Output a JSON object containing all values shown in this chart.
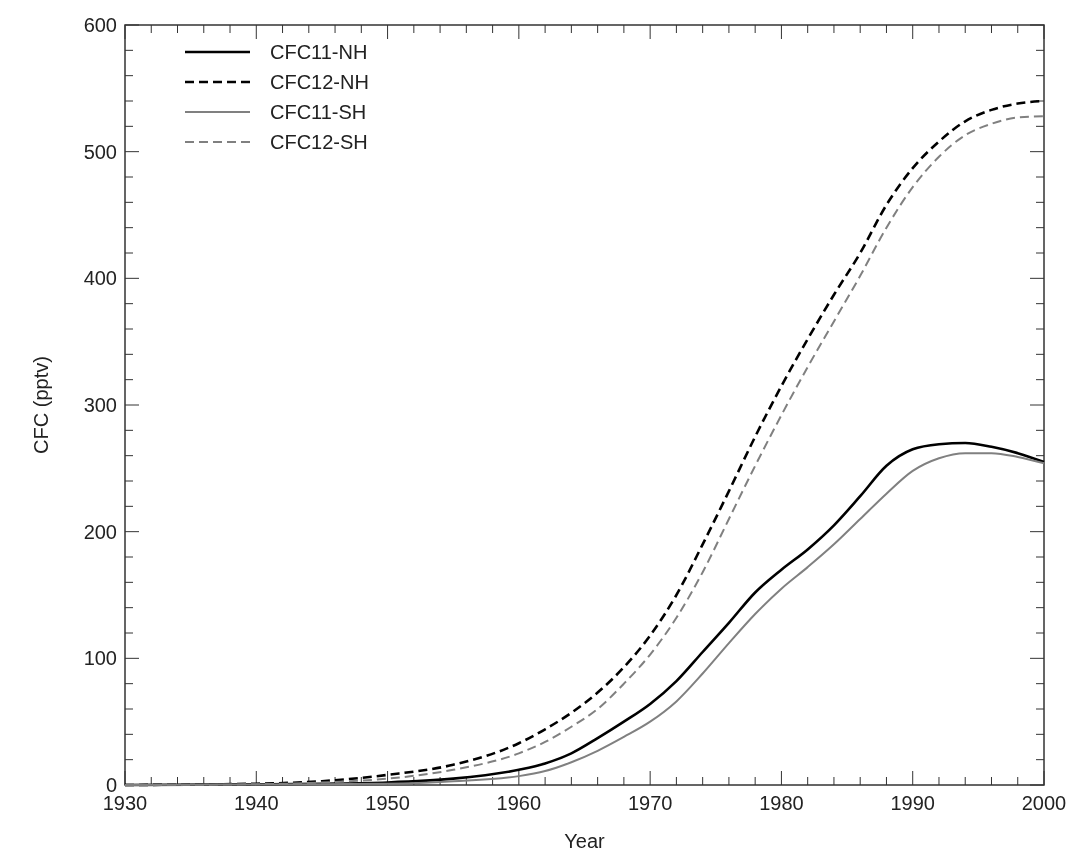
{
  "chart_data": {
    "type": "line",
    "xlabel": "Year",
    "ylabel": "CFC (pptv)",
    "xlim": [
      1930,
      2000
    ],
    "ylim": [
      0,
      600
    ],
    "xticks": [
      1930,
      {
        "value": 1932,
        "label": null
      },
      {
        "value": 1934,
        "label": null
      },
      {
        "value": 1936,
        "label": null
      },
      {
        "value": 1938,
        "label": null
      },
      1940,
      {
        "value": 1942,
        "label": null
      },
      {
        "value": 1944,
        "label": null
      },
      {
        "value": 1946,
        "label": null
      },
      {
        "value": 1948,
        "label": null
      },
      1950,
      {
        "value": 1952,
        "label": null
      },
      {
        "value": 1954,
        "label": null
      },
      {
        "value": 1956,
        "label": null
      },
      {
        "value": 1958,
        "label": null
      },
      1960,
      {
        "value": 1962,
        "label": null
      },
      {
        "value": 1964,
        "label": null
      },
      {
        "value": 1966,
        "label": null
      },
      {
        "value": 1968,
        "label": null
      },
      1970,
      {
        "value": 1972,
        "label": null
      },
      {
        "value": 1974,
        "label": null
      },
      {
        "value": 1976,
        "label": null
      },
      {
        "value": 1978,
        "label": null
      },
      1980,
      {
        "value": 1982,
        "label": null
      },
      {
        "value": 1984,
        "label": null
      },
      {
        "value": 1986,
        "label": null
      },
      {
        "value": 1988,
        "label": null
      },
      1990,
      {
        "value": 1992,
        "label": null
      },
      {
        "value": 1994,
        "label": null
      },
      {
        "value": 1996,
        "label": null
      },
      {
        "value": 1998,
        "label": null
      },
      2000
    ],
    "yticks": [
      0,
      {
        "value": 20,
        "label": null
      },
      {
        "value": 40,
        "label": null
      },
      {
        "value": 60,
        "label": null
      },
      {
        "value": 80,
        "label": null
      },
      100,
      {
        "value": 120,
        "label": null
      },
      {
        "value": 140,
        "label": null
      },
      {
        "value": 160,
        "label": null
      },
      {
        "value": 180,
        "label": null
      },
      200,
      {
        "value": 220,
        "label": null
      },
      {
        "value": 240,
        "label": null
      },
      {
        "value": 260,
        "label": null
      },
      {
        "value": 280,
        "label": null
      },
      300,
      {
        "value": 320,
        "label": null
      },
      {
        "value": 340,
        "label": null
      },
      {
        "value": 360,
        "label": null
      },
      {
        "value": 380,
        "label": null
      },
      400,
      {
        "value": 420,
        "label": null
      },
      {
        "value": 440,
        "label": null
      },
      {
        "value": 460,
        "label": null
      },
      {
        "value": 480,
        "label": null
      },
      500,
      {
        "value": 520,
        "label": null
      },
      {
        "value": 540,
        "label": null
      },
      {
        "value": 560,
        "label": null
      },
      {
        "value": 580,
        "label": null
      },
      600
    ],
    "x": [
      1930,
      1940,
      1945,
      1950,
      1955,
      1960,
      1962,
      1964,
      1966,
      1968,
      1970,
      1972,
      1974,
      1976,
      1978,
      1980,
      1982,
      1984,
      1986,
      1988,
      1990,
      1992,
      1994,
      1996,
      1998,
      2000
    ],
    "legend": "top left",
    "grid": false,
    "marker": "none",
    "series": [
      {
        "name": "CFC11-NH",
        "color": "#000000",
        "line_style": "solid",
        "values": [
          0,
          0.5,
          1,
          2,
          5,
          12,
          17,
          25,
          37,
          50,
          64,
          82,
          105,
          128,
          152,
          170,
          186,
          205,
          228,
          252,
          265,
          269,
          270,
          267,
          262,
          255
        ]
      },
      {
        "name": "CFC12-NH",
        "color": "#000000",
        "line_style": "dashed",
        "values": [
          0,
          1,
          3,
          8,
          16,
          33,
          44,
          57,
          73,
          93,
          118,
          150,
          190,
          232,
          275,
          315,
          352,
          387,
          420,
          458,
          487,
          508,
          524,
          533,
          538,
          540
        ]
      },
      {
        "name": "CFC11-SH",
        "color": "#808080",
        "line_style": "solid",
        "values": [
          0,
          0.3,
          0.6,
          1,
          3,
          7,
          11,
          18,
          27,
          38,
          50,
          66,
          88,
          112,
          135,
          155,
          172,
          190,
          210,
          230,
          248,
          258,
          262,
          262,
          259,
          254
        ]
      },
      {
        "name": "CFC12-SH",
        "color": "#808080",
        "line_style": "dashed",
        "values": [
          0,
          0.6,
          2,
          5,
          12,
          25,
          34,
          46,
          60,
          80,
          103,
          132,
          168,
          210,
          252,
          292,
          330,
          366,
          402,
          440,
          472,
          496,
          513,
          522,
          527,
          528
        ]
      }
    ]
  }
}
